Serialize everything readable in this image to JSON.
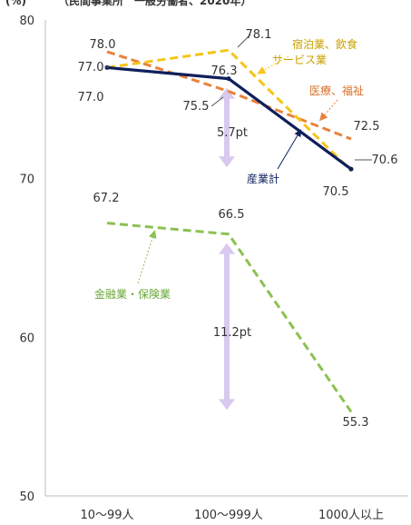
{
  "header": {
    "unit": "(%)",
    "subtitle": "（民間事業所　一般労働者、2020年）"
  },
  "chart_data": {
    "type": "line",
    "title": "",
    "xlabel": "",
    "ylabel": "",
    "unit": "(%)",
    "categories": [
      "10～99人",
      "100～999人",
      "1000人以上"
    ],
    "ylim": [
      50,
      80
    ],
    "yticks": [
      50,
      60,
      70,
      80
    ],
    "grid": false,
    "series": [
      {
        "name": "産業計",
        "values": [
          77.0,
          76.3,
          70.6
        ],
        "color": "#0f1f5c",
        "dashed": false,
        "value_labels": [
          "77.0",
          "76.3",
          "70.6"
        ]
      },
      {
        "name": "宿泊業、飲食サービス業",
        "values": [
          77.0,
          78.1,
          70.5
        ],
        "color": "#f5c518",
        "dashed": true,
        "value_labels": [
          "77.0",
          "78.1",
          "70.5"
        ]
      },
      {
        "name": "医療、福祉",
        "values": [
          78.0,
          75.5,
          72.5
        ],
        "color": "#e8823a",
        "dashed": true,
        "value_labels": [
          "78.0",
          "75.5",
          "72.5"
        ]
      },
      {
        "name": "金融業・保険業",
        "values": [
          67.2,
          66.5,
          55.3
        ],
        "color": "#8cc152",
        "dashed": true,
        "value_labels": [
          "67.2",
          "66.5",
          "55.3"
        ]
      }
    ],
    "annotations": [
      {
        "text": "5.7pt",
        "from": 76.3,
        "to": 70.6,
        "category_index": 1
      },
      {
        "text": "11.2pt",
        "from": 66.5,
        "to": 55.3,
        "category_index": 1
      }
    ]
  }
}
